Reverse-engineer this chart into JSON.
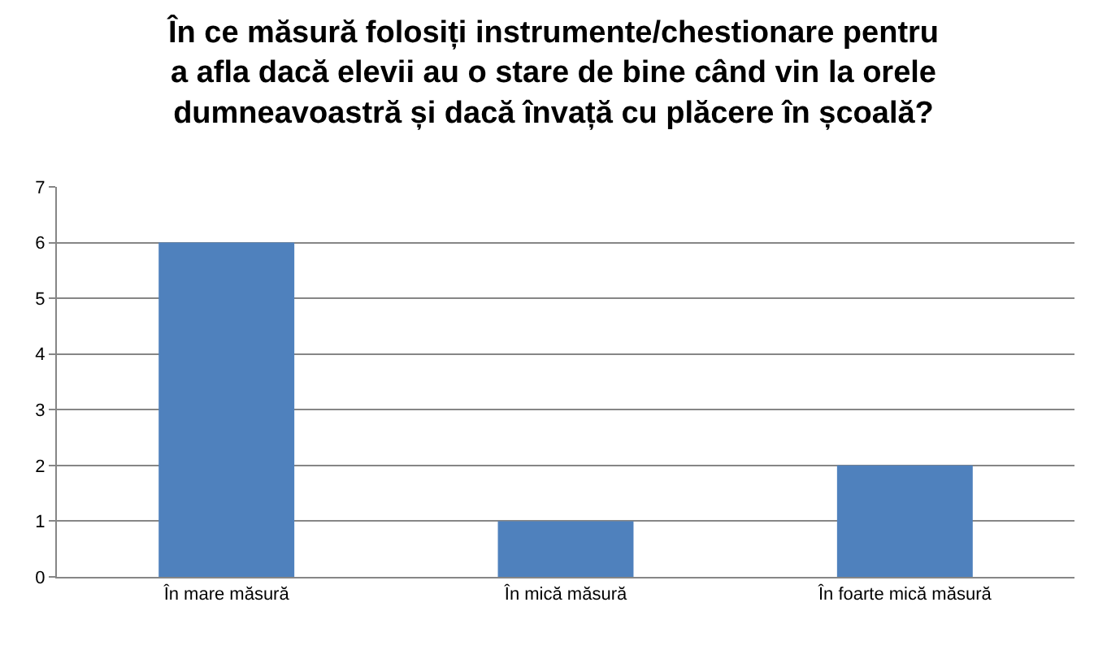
{
  "chart_data": {
    "type": "bar",
    "title": "În ce măsură folosiți instrumente/chestionare pentru\na afla dacă elevii au o stare de bine când vin la orele\ndumneavoastră și dacă învață cu plăcere în școală?",
    "categories": [
      "În mare măsură",
      "În mică măsură",
      "În foarte mică măsură"
    ],
    "values": [
      6,
      1,
      2
    ],
    "color": "#4f81bd",
    "ylim": [
      0,
      7
    ],
    "yticks": [
      0,
      1,
      2,
      3,
      4,
      5,
      6,
      7
    ],
    "grid": "y"
  }
}
